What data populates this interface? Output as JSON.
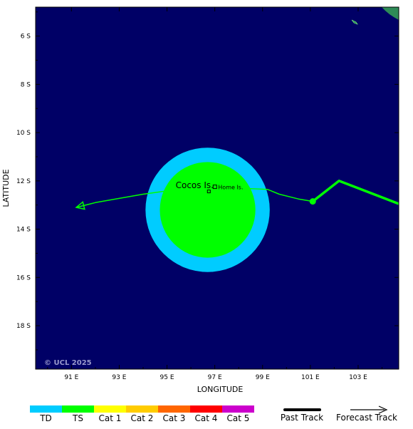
{
  "map": {
    "background_color": "#000066",
    "credit": "© UCL 2025",
    "xlabel": "LONGITUDE",
    "ylabel": "LATITUDE",
    "lon_range": [
      89.5,
      104.7
    ],
    "lat_range": [
      -4.8,
      -19.8
    ],
    "x_ticks": [
      {
        "lon": 91,
        "label": "91 E"
      },
      {
        "lon": 93,
        "label": "93 E"
      },
      {
        "lon": 95,
        "label": "95 E"
      },
      {
        "lon": 97,
        "label": "97 E"
      },
      {
        "lon": 99,
        "label": "99 E"
      },
      {
        "lon": 101,
        "label": "101 E"
      },
      {
        "lon": 103,
        "label": "103 E"
      }
    ],
    "y_ticks": [
      {
        "lat": -6,
        "label": "6 S"
      },
      {
        "lat": -8,
        "label": "8 S"
      },
      {
        "lat": -10,
        "label": "10 S"
      },
      {
        "lat": -12,
        "label": "12 S"
      },
      {
        "lat": -14,
        "label": "14 S"
      },
      {
        "lat": -16,
        "label": "16 S"
      },
      {
        "lat": -18,
        "label": "18 S"
      }
    ],
    "places": [
      {
        "name": "Cocos Is.",
        "lon": 96.85,
        "lat": -12.15
      },
      {
        "name": "Home Is.",
        "lon": 96.9,
        "lat": -12.2
      }
    ],
    "wind_circles": [
      {
        "category": "TD",
        "lon": 96.7,
        "lat": -13.2,
        "radius_deg": 2.6,
        "color": "#00ccff"
      },
      {
        "category": "TS",
        "lon": 96.7,
        "lat": -13.2,
        "radius_deg": 2.0,
        "color": "#00ff00"
      }
    ],
    "past_track": {
      "color": "#00ff00",
      "points": [
        [
          104.7,
          -12.95
        ],
        [
          102.2,
          -12.0
        ],
        [
          101.1,
          -12.85
        ]
      ]
    },
    "forecast_track": {
      "color": "#00ff00",
      "points": [
        [
          101.1,
          -12.85
        ],
        [
          100.5,
          -12.75
        ],
        [
          99.7,
          -12.55
        ],
        [
          99.2,
          -12.35
        ],
        [
          98.0,
          -12.3
        ],
        [
          96.7,
          -12.3
        ],
        [
          95.1,
          -12.4
        ],
        [
          94.0,
          -12.55
        ],
        [
          92.0,
          -12.9
        ],
        [
          91.2,
          -13.1
        ]
      ]
    },
    "current_position": {
      "lon": 101.1,
      "lat": -12.85
    }
  },
  "legend": {
    "categories": [
      {
        "label": "TD",
        "color": "#00ccff"
      },
      {
        "label": "TS",
        "color": "#00ff00"
      },
      {
        "label": "Cat 1",
        "color": "#ffff00"
      },
      {
        "label": "Cat 2",
        "color": "#ffcc00"
      },
      {
        "label": "Cat 3",
        "color": "#ff6600"
      },
      {
        "label": "Cat 4",
        "color": "#ff0000"
      },
      {
        "label": "Cat 5",
        "color": "#cc00cc"
      }
    ],
    "past_track_label": "Past Track",
    "forecast_track_label": "Forecast Track"
  }
}
